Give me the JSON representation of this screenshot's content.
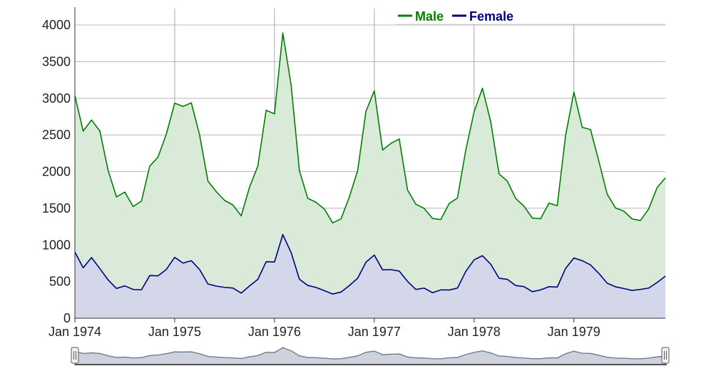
{
  "chart_data": {
    "type": "area",
    "x_start": "Jan 1974",
    "x_end": "Dec 1979",
    "x_ticks": [
      "Jan 1974",
      "Jan 1975",
      "Jan 1976",
      "Jan 1977",
      "Jan 1978",
      "Jan 1979"
    ],
    "y_ticks": [
      "0",
      "500",
      "1000",
      "1500",
      "2000",
      "2500",
      "3000",
      "3500",
      "4000"
    ],
    "ylim": [
      0,
      4200
    ],
    "grid": true,
    "legend_position": "top-right",
    "series": [
      {
        "name": "Male",
        "color": "#008000",
        "fill": "#d9ead8",
        "values": [
          3035,
          2552,
          2704,
          2554,
          2014,
          1655,
          1721,
          1524,
          1596,
          2074,
          2199,
          2512,
          2933,
          2889,
          2938,
          2497,
          1870,
          1726,
          1607,
          1545,
          1396,
          1787,
          2076,
          2837,
          2787,
          3891,
          3179,
          2011,
          1636,
          1580,
          1489,
          1300,
          1356,
          1653,
          2013,
          2823,
          3102,
          2294,
          2385,
          2444,
          1748,
          1554,
          1498,
          1361,
          1346,
          1564,
          1640,
          2293,
          2815,
          3137,
          2679,
          1969,
          1870,
          1633,
          1529,
          1366,
          1357,
          1570,
          1535,
          2491,
          3084,
          2605,
          2573,
          2143,
          1693,
          1504,
          1461,
          1354,
          1333,
          1492,
          1781,
          1915
        ]
      },
      {
        "name": "Female",
        "color": "#000080",
        "fill": "#d4d6ea",
        "values": [
          901,
          689,
          827,
          677,
          522,
          406,
          441,
          393,
          387,
          582,
          578,
          666,
          830,
          752,
          785,
          664,
          467,
          438,
          421,
          412,
          343,
          440,
          531,
          771,
          767,
          1141,
          896,
          532,
          447,
          420,
          376,
          330,
          357,
          445,
          546,
          764,
          862,
          660,
          663,
          643,
          502,
          392,
          411,
          348,
          387,
          385,
          411,
          638,
          796,
          853,
          737,
          546,
          530,
          446,
          431,
          362,
          387,
          430,
          425,
          679,
          821,
          785,
          727,
          612,
          478,
          429,
          405,
          379,
          393,
          411,
          487,
          574
        ]
      }
    ]
  },
  "navigator": {
    "range_start": "Jan 1974",
    "range_end": "Dec 1979"
  }
}
